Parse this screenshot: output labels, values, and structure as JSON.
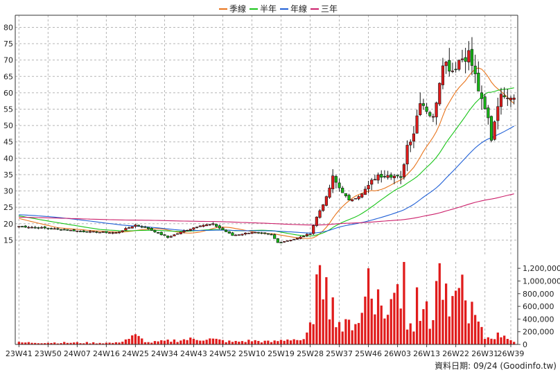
{
  "chart_data": {
    "type": "candlestick",
    "legend": {
      "placement": "top-center",
      "items": [
        {
          "name": "季線",
          "color": "#e8731a"
        },
        {
          "name": "半年",
          "color": "#18c418"
        },
        {
          "name": "年線",
          "color": "#1f5fd6"
        },
        {
          "name": "三年",
          "color": "#cc1f6a"
        }
      ]
    },
    "price_axis": {
      "ylim": [
        10,
        82
      ],
      "ticks": [
        15,
        20,
        25,
        30,
        35,
        40,
        45,
        50,
        55,
        60,
        65,
        70,
        75,
        80
      ],
      "grid": true
    },
    "volume_axis": {
      "ylim": [
        0,
        1300000
      ],
      "ticks": [
        0,
        200000,
        400000,
        600000,
        800000,
        1000000,
        1200000
      ],
      "tick_labels": [
        "0",
        "200,000",
        "400,000",
        "600,000",
        "800,000",
        "1,000,000",
        "1,200,000"
      ]
    },
    "x_ticks": [
      {
        "label": "23W41",
        "index": 0
      },
      {
        "label": "23W50",
        "index": 9
      },
      {
        "label": "24W07",
        "index": 18
      },
      {
        "label": "24W16",
        "index": 27
      },
      {
        "label": "24W25",
        "index": 36
      },
      {
        "label": "24W34",
        "index": 45
      },
      {
        "label": "24W43",
        "index": 54
      },
      {
        "label": "24W52",
        "index": 63
      },
      {
        "label": "25W10",
        "index": 72
      },
      {
        "label": "25W19",
        "index": 81
      },
      {
        "label": "25W28",
        "index": 90
      },
      {
        "label": "25W37",
        "index": 99
      },
      {
        "label": "25W46",
        "index": 108
      },
      {
        "label": "26W03",
        "index": 117
      },
      {
        "label": "26W13",
        "index": 126
      },
      {
        "label": "26W22",
        "index": 135
      },
      {
        "label": "26W31",
        "index": 144
      },
      {
        "label": "26W39",
        "index": 152
      }
    ],
    "price_key_points": [
      [
        0,
        19.2
      ],
      [
        10,
        18.5
      ],
      [
        20,
        17.6
      ],
      [
        30,
        17.2
      ],
      [
        36,
        19.6
      ],
      [
        40,
        18.5
      ],
      [
        46,
        15.8
      ],
      [
        50,
        17.4
      ],
      [
        56,
        19.5
      ],
      [
        60,
        19.8
      ],
      [
        66,
        16.4
      ],
      [
        72,
        17.4
      ],
      [
        78,
        16.6
      ],
      [
        80,
        14.2
      ],
      [
        86,
        15.5
      ],
      [
        90,
        17.0
      ],
      [
        92,
        22.0
      ],
      [
        95,
        28.0
      ],
      [
        97,
        34.0
      ],
      [
        99,
        31.0
      ],
      [
        102,
        27.0
      ],
      [
        106,
        29.0
      ],
      [
        110,
        34.0
      ],
      [
        114,
        35.5
      ],
      [
        118,
        33.5
      ],
      [
        120,
        44.0
      ],
      [
        122,
        48.0
      ],
      [
        124,
        58.0
      ],
      [
        126,
        55.0
      ],
      [
        128,
        52.0
      ],
      [
        131,
        70.0
      ],
      [
        134,
        67.0
      ],
      [
        136,
        70.0
      ],
      [
        139,
        72.0
      ],
      [
        141,
        65.0
      ],
      [
        143,
        57.0
      ],
      [
        145,
        52.0
      ],
      [
        146,
        46.0
      ],
      [
        148,
        57.0
      ],
      [
        150,
        60.0
      ],
      [
        153,
        59.0
      ]
    ],
    "volume_key_points": [
      [
        0,
        30000
      ],
      [
        30,
        25000
      ],
      [
        36,
        130000
      ],
      [
        40,
        30000
      ],
      [
        52,
        80000
      ],
      [
        58,
        90000
      ],
      [
        66,
        40000
      ],
      [
        72,
        60000
      ],
      [
        78,
        40000
      ],
      [
        84,
        90000
      ],
      [
        88,
        60000
      ],
      [
        90,
        250000
      ],
      [
        92,
        850000
      ],
      [
        94,
        1000000
      ],
      [
        96,
        700000
      ],
      [
        100,
        250000
      ],
      [
        106,
        450000
      ],
      [
        108,
        1000000
      ],
      [
        111,
        700000
      ],
      [
        114,
        450000
      ],
      [
        117,
        950000
      ],
      [
        120,
        300000
      ],
      [
        123,
        300000
      ],
      [
        125,
        700000
      ],
      [
        127,
        260000
      ],
      [
        130,
        1100000
      ],
      [
        133,
        450000
      ],
      [
        136,
        700000
      ],
      [
        140,
        500000
      ],
      [
        144,
        100000
      ],
      [
        150,
        160000
      ],
      [
        153,
        40000
      ]
    ],
    "volume_spikes": [
      [
        93,
        1250000
      ],
      [
        95,
        1060000
      ],
      [
        108,
        1200000
      ],
      [
        117,
        950000
      ],
      [
        119,
        1300000
      ],
      [
        123,
        900000
      ],
      [
        129,
        1000000
      ],
      [
        130,
        1280000
      ],
      [
        136,
        890000
      ],
      [
        137,
        1100000
      ]
    ],
    "source_label": "資料日期: 09/24 (Goodinfo.tw)"
  }
}
